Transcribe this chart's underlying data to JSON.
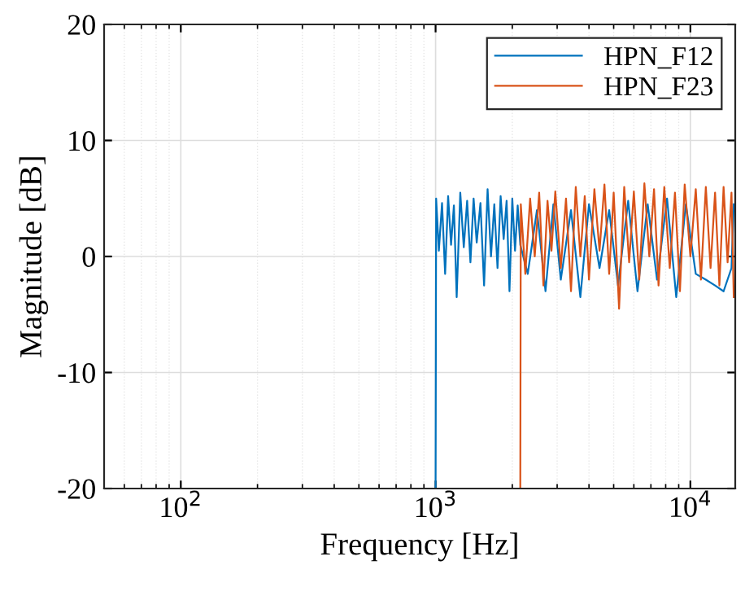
{
  "chart_data": {
    "type": "line",
    "xlabel": "Frequency [Hz]",
    "ylabel": "Magnitude [dB]",
    "log": "x",
    "xlim": [
      50,
      15000
    ],
    "ylim": [
      -20,
      20
    ],
    "xticks": [
      {
        "value": 100,
        "label": "10$^{2}$"
      },
      {
        "value": 1000,
        "label": "10$^{3}$"
      },
      {
        "value": 10000,
        "label": "10$^{4}$"
      }
    ],
    "yticks": [
      -20,
      -10,
      0,
      10,
      20
    ],
    "grid": true,
    "legend": "top right",
    "series": [
      {
        "name": "HPN_F12",
        "color": "#0072bd",
        "x": [
          1000,
          1005,
          1030,
          1060,
          1090,
          1120,
          1150,
          1180,
          1210,
          1250,
          1290,
          1330,
          1370,
          1410,
          1450,
          1500,
          1550,
          1600,
          1650,
          1700,
          1750,
          1800,
          1850,
          1900,
          1950,
          2000,
          2050,
          2100,
          2150,
          2300,
          2500,
          2700,
          2900,
          3100,
          3400,
          3700,
          4000,
          4400,
          4800,
          5200,
          5700,
          6200,
          6800,
          7400,
          8100,
          8800,
          9600,
          10500,
          11500,
          12500,
          13500,
          14500,
          14800
        ],
        "values": [
          -20,
          5.0,
          0.5,
          4.6,
          -1.5,
          5.2,
          1.0,
          4.4,
          -3.5,
          5.5,
          0.8,
          4.8,
          -0.5,
          5.0,
          1.2,
          4.6,
          -2.5,
          5.8,
          0.0,
          4.5,
          -1.0,
          5.2,
          1.5,
          4.8,
          -3.0,
          5.0,
          0.5,
          4.4,
          1.0,
          -1.5,
          4.0,
          -3.0,
          4.5,
          -2.0,
          4.0,
          -3.5,
          4.5,
          -1.0,
          4.0,
          -2.5,
          4.8,
          -3.0,
          4.5,
          -2.0,
          5.0,
          -3.5,
          4.5,
          -1.5,
          -2.0,
          -2.5,
          -3.0,
          -1.0,
          4.5
        ]
      },
      {
        "name": "HPN_F23",
        "color": "#d95319",
        "x": [
          2150,
          2160,
          2250,
          2350,
          2450,
          2550,
          2650,
          2750,
          2850,
          2950,
          3100,
          3250,
          3400,
          3550,
          3700,
          3850,
          4000,
          4200,
          4400,
          4600,
          4800,
          5000,
          5250,
          5500,
          5750,
          6000,
          6300,
          6600,
          6900,
          7200,
          7500,
          7900,
          8300,
          8700,
          9100,
          9500,
          10000,
          10500,
          11000,
          11500,
          12000,
          12500,
          13000,
          13500,
          14000,
          14500,
          14800
        ],
        "values": [
          -20,
          4.5,
          -1.5,
          5.0,
          0.0,
          5.5,
          -2.5,
          4.8,
          0.5,
          5.6,
          -1.0,
          5.0,
          -3.0,
          6.0,
          0.0,
          5.2,
          -2.0,
          5.8,
          0.5,
          6.2,
          -1.5,
          5.5,
          -4.5,
          6.0,
          -0.5,
          5.6,
          -2.0,
          6.3,
          0.0,
          5.8,
          -2.5,
          6.0,
          -1.0,
          5.5,
          -3.0,
          6.2,
          0.0,
          5.8,
          -2.0,
          6.0,
          -1.0,
          5.5,
          -2.5,
          6.0,
          -0.5,
          5.5,
          -3.5
        ]
      }
    ]
  }
}
